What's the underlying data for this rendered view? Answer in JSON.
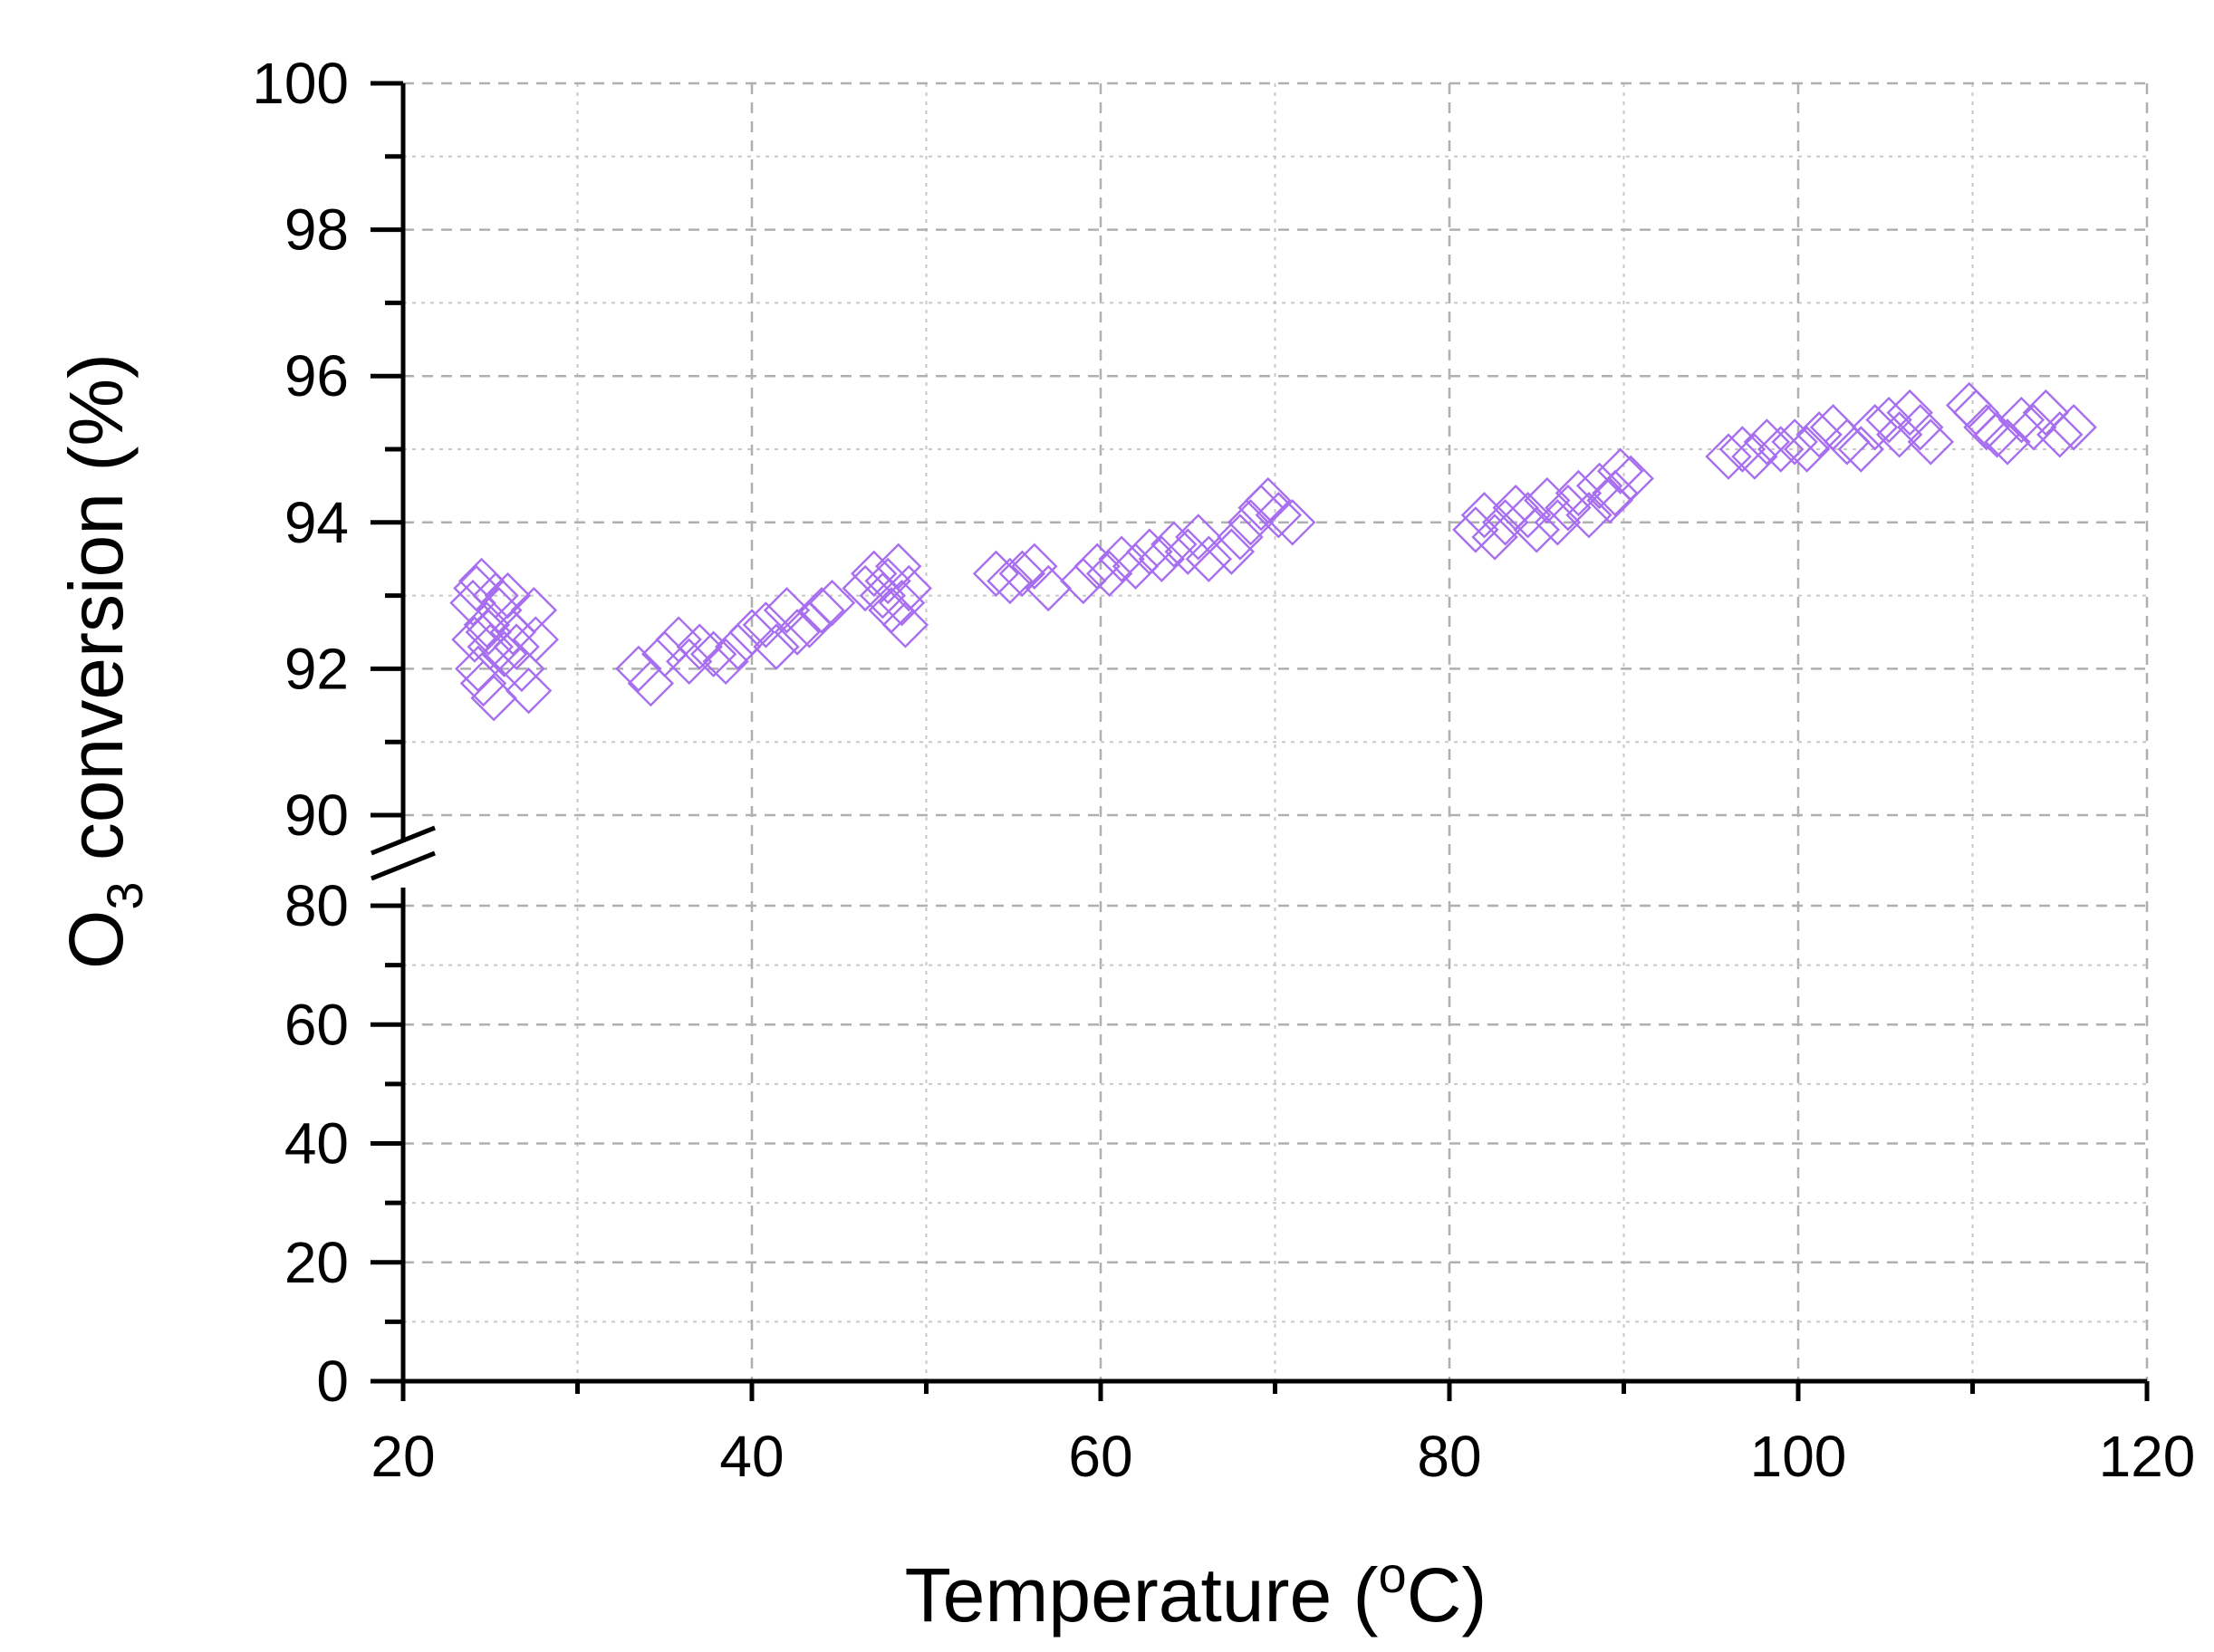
{
  "chart_data": {
    "type": "scatter",
    "title": "",
    "xlabel": "Temperature (",
    "xlabel_sup": "o",
    "xlabel_unit": "C)",
    "ylabel_main": "O",
    "ylabel_sub": "3",
    "ylabel_rest": " conversion (%)",
    "xlim": [
      20,
      120
    ],
    "xticks": [
      "20",
      "40",
      "60",
      "80",
      "100",
      "120"
    ],
    "y_break": {
      "lower_range": [
        0,
        80
      ],
      "upper_range": [
        90,
        100
      ]
    },
    "yticks_lower": [
      "0",
      "20",
      "40",
      "60",
      "80"
    ],
    "yticks_upper": [
      "90",
      "92",
      "94",
      "96",
      "98",
      "100"
    ],
    "grid": true,
    "marker": "hollow-diamond",
    "marker_color": "#a86ef0",
    "series": [
      {
        "values": [
          [
            24.0,
            92.9
          ],
          [
            24.2,
            93.1
          ],
          [
            24.5,
            93.2
          ],
          [
            24.8,
            92.6
          ],
          [
            25.0,
            92.3
          ],
          [
            24.3,
            92.0
          ],
          [
            24.6,
            91.8
          ],
          [
            25.2,
            91.6
          ],
          [
            25.5,
            92.8
          ],
          [
            26.0,
            93.0
          ],
          [
            26.3,
            92.5
          ],
          [
            26.8,
            92.0
          ],
          [
            27.2,
            91.7
          ],
          [
            27.5,
            92.8
          ],
          [
            25.8,
            92.2
          ],
          [
            24.9,
            92.5
          ],
          [
            24.1,
            92.4
          ],
          [
            25.3,
            93.0
          ],
          [
            26.5,
            92.3
          ],
          [
            27.6,
            92.4
          ],
          [
            33.5,
            92.0
          ],
          [
            34.2,
            91.8
          ],
          [
            35.0,
            92.2
          ],
          [
            35.8,
            92.4
          ],
          [
            36.4,
            92.1
          ],
          [
            37.0,
            92.3
          ],
          [
            37.8,
            92.2
          ],
          [
            38.5,
            92.1
          ],
          [
            39.2,
            92.3
          ],
          [
            40.0,
            92.5
          ],
          [
            40.8,
            92.6
          ],
          [
            41.4,
            92.3
          ],
          [
            42.0,
            92.8
          ],
          [
            42.6,
            92.5
          ],
          [
            43.3,
            92.6
          ],
          [
            44.0,
            92.8
          ],
          [
            44.6,
            92.9
          ],
          [
            46.5,
            93.1
          ],
          [
            47.0,
            93.3
          ],
          [
            47.5,
            93.0
          ],
          [
            48.0,
            92.8
          ],
          [
            48.4,
            93.4
          ],
          [
            48.8,
            92.6
          ],
          [
            49.0,
            93.1
          ],
          [
            47.8,
            93.2
          ],
          [
            48.6,
            92.9
          ],
          [
            54.0,
            93.3
          ],
          [
            54.8,
            93.2
          ],
          [
            55.5,
            93.3
          ],
          [
            56.2,
            93.4
          ],
          [
            57.0,
            93.1
          ],
          [
            59.0,
            93.2
          ],
          [
            59.8,
            93.4
          ],
          [
            60.5,
            93.3
          ],
          [
            61.2,
            93.5
          ],
          [
            62.0,
            93.4
          ],
          [
            62.8,
            93.6
          ],
          [
            63.5,
            93.5
          ],
          [
            64.2,
            93.7
          ],
          [
            65.0,
            93.6
          ],
          [
            65.6,
            93.8
          ],
          [
            66.2,
            93.5
          ],
          [
            67.5,
            93.6
          ],
          [
            68.0,
            93.8
          ],
          [
            68.6,
            94.0
          ],
          [
            69.2,
            94.2
          ],
          [
            69.6,
            94.3
          ],
          [
            70.2,
            94.1
          ],
          [
            71.0,
            94.0
          ],
          [
            81.5,
            93.9
          ],
          [
            82.0,
            94.1
          ],
          [
            82.6,
            93.8
          ],
          [
            83.2,
            94.0
          ],
          [
            83.8,
            94.2
          ],
          [
            84.5,
            94.1
          ],
          [
            85.0,
            93.9
          ],
          [
            85.6,
            94.3
          ],
          [
            86.2,
            94.0
          ],
          [
            86.8,
            94.2
          ],
          [
            87.4,
            94.4
          ],
          [
            88.0,
            94.1
          ],
          [
            88.6,
            94.5
          ],
          [
            89.2,
            94.3
          ],
          [
            89.8,
            94.7
          ],
          [
            90.4,
            94.6
          ],
          [
            89.5,
            94.4
          ],
          [
            96.0,
            94.9
          ],
          [
            96.8,
            95.0
          ],
          [
            97.5,
            94.9
          ],
          [
            98.2,
            95.1
          ],
          [
            99.0,
            95.0
          ],
          [
            99.8,
            95.1
          ],
          [
            100.5,
            95.0
          ],
          [
            101.2,
            95.2
          ],
          [
            102.0,
            95.3
          ],
          [
            102.8,
            95.1
          ],
          [
            103.6,
            95.0
          ],
          [
            104.4,
            95.3
          ],
          [
            105.2,
            95.4
          ],
          [
            105.8,
            95.2
          ],
          [
            106.4,
            95.5
          ],
          [
            107.0,
            95.3
          ],
          [
            107.6,
            95.1
          ],
          [
            109.8,
            95.6
          ],
          [
            110.2,
            95.5
          ],
          [
            110.8,
            95.3
          ],
          [
            111.4,
            95.2
          ],
          [
            112.0,
            95.1
          ],
          [
            112.8,
            95.4
          ],
          [
            113.5,
            95.3
          ],
          [
            114.2,
            95.5
          ],
          [
            115.0,
            95.2
          ],
          [
            115.8,
            95.3
          ]
        ]
      }
    ]
  }
}
